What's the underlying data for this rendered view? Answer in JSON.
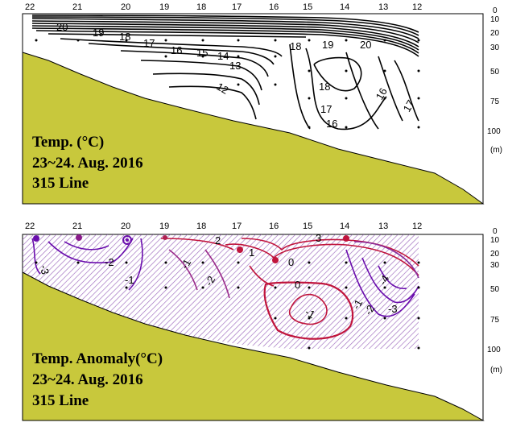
{
  "chart_data": [
    {
      "type": "contour",
      "title": "Temp. (°C)",
      "subtitle": "23~24. Aug. 2016",
      "line": "315 Line",
      "stations": [
        "22",
        "21",
        "20",
        "19",
        "18",
        "17",
        "16",
        "15",
        "14",
        "13",
        "12"
      ],
      "depth_ticks": [
        "0",
        "10",
        "20",
        "30",
        "50",
        "75",
        "100"
      ],
      "depth_unit": "(m)",
      "contour_labels": [
        "20",
        "19",
        "18",
        "17",
        "16",
        "15",
        "14",
        "13",
        "12",
        "18",
        "16",
        "17",
        "16",
        "17",
        "18",
        "19",
        "20"
      ],
      "colors": {
        "contour": "#000000",
        "seabed": "#c8c83c"
      }
    },
    {
      "type": "contour",
      "title": "Temp. Anomaly(°C)",
      "subtitle": "23~24. Aug. 2016",
      "line": "315 Line",
      "stations": [
        "22",
        "21",
        "20",
        "19",
        "18",
        "17",
        "16",
        "15",
        "14",
        "13",
        "12"
      ],
      "depth_ticks": [
        "0",
        "10",
        "20",
        "30",
        "50",
        "75",
        "100"
      ],
      "depth_unit": "(m)",
      "contour_labels": [
        "-3",
        "-2",
        "-1",
        "-1",
        "-2",
        "2",
        "1",
        "0",
        "3",
        "0",
        "-1",
        "-1",
        "-2",
        "-3",
        "-4"
      ],
      "colors": {
        "positive": "#c0143c",
        "negative": "#6a0dad",
        "seabed": "#c8c83c"
      }
    }
  ]
}
